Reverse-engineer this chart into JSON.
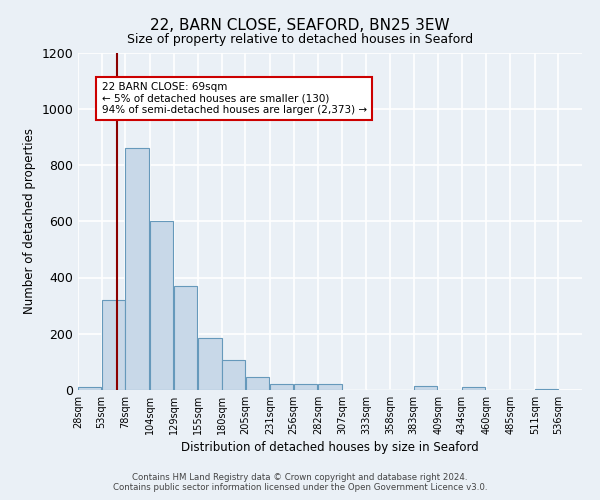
{
  "title": "22, BARN CLOSE, SEAFORD, BN25 3EW",
  "subtitle": "Size of property relative to detached houses in Seaford",
  "xlabel": "Distribution of detached houses by size in Seaford",
  "ylabel": "Number of detached properties",
  "bar_left_edges": [
    28,
    53,
    78,
    104,
    129,
    155,
    180,
    205,
    231,
    256,
    282,
    307,
    333,
    358,
    383,
    409,
    434,
    460,
    485,
    511
  ],
  "bar_heights": [
    10,
    320,
    860,
    600,
    370,
    185,
    105,
    45,
    22,
    20,
    20,
    0,
    0,
    0,
    15,
    0,
    10,
    0,
    0,
    5
  ],
  "bin_width": 25,
  "tick_labels": [
    "28sqm",
    "53sqm",
    "78sqm",
    "104sqm",
    "129sqm",
    "155sqm",
    "180sqm",
    "205sqm",
    "231sqm",
    "256sqm",
    "282sqm",
    "307sqm",
    "333sqm",
    "358sqm",
    "383sqm",
    "409sqm",
    "434sqm",
    "460sqm",
    "485sqm",
    "511sqm",
    "536sqm"
  ],
  "tick_positions": [
    28,
    53,
    78,
    104,
    129,
    155,
    180,
    205,
    231,
    256,
    282,
    307,
    333,
    358,
    383,
    409,
    434,
    460,
    485,
    511,
    536
  ],
  "bar_color": "#c8d8e8",
  "bar_edge_color": "#6699bb",
  "vline_x": 69,
  "vline_color": "#8b0000",
  "annotation_line1": "22 BARN CLOSE: 69sqm",
  "annotation_line2": "← 5% of detached houses are smaller (130)",
  "annotation_line3": "94% of semi-detached houses are larger (2,373) →",
  "annotation_box_color": "#ffffff",
  "annotation_box_edge": "#cc0000",
  "ylim": [
    0,
    1200
  ],
  "xlim": [
    28,
    561
  ],
  "background_color": "#eaf0f6",
  "grid_color": "#ffffff",
  "footer_line1": "Contains HM Land Registry data © Crown copyright and database right 2024.",
  "footer_line2": "Contains public sector information licensed under the Open Government Licence v3.0."
}
